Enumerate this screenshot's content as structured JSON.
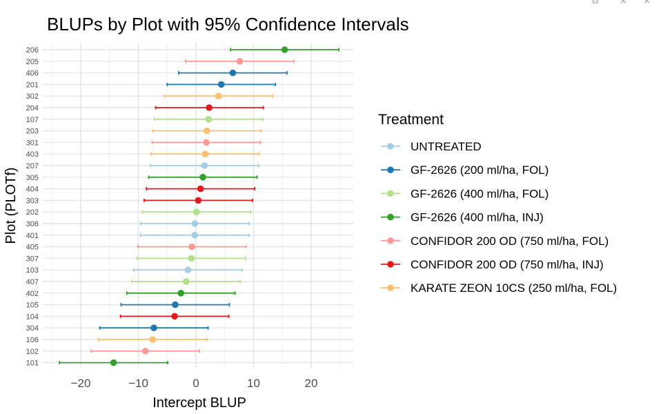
{
  "window_controls": [
    "⧉",
    "×",
    "×"
  ],
  "chart_data": {
    "type": "scatter",
    "title": "BLUPs by Plot with 95% Confidence Intervals",
    "xlabel": "Intercept BLUP",
    "ylabel": "Plot (PLOTf)",
    "xlim": [
      -25,
      25
    ],
    "xticks": [
      -20,
      -10,
      0,
      10,
      20
    ],
    "grid": true,
    "legend": {
      "title": "Treatment",
      "position": "right",
      "entries": [
        {
          "name": "UNTREATED",
          "color": "#a6cee3"
        },
        {
          "name": "GF-2626 (200 ml/ha, FOL)",
          "color": "#1f78b4"
        },
        {
          "name": "GF-2626 (400 ml/ha, FOL)",
          "color": "#b2df8a"
        },
        {
          "name": "GF-2626 (400 ml/ha, INJ)",
          "color": "#33a02c"
        },
        {
          "name": "CONFIDOR 200 OD (750 ml/ha, FOL)",
          "color": "#fb9a99"
        },
        {
          "name": "CONFIDOR 200 OD (750 ml/ha, INJ)",
          "color": "#e31a1c"
        },
        {
          "name": "KARATE ZEON 10CS (250 ml/ha, FOL)",
          "color": "#fdbf6f"
        }
      ]
    },
    "points": [
      {
        "plot": "206",
        "treatment": 3,
        "blup": 15.4,
        "lower": 6.0,
        "upper": 24.8
      },
      {
        "plot": "205",
        "treatment": 4,
        "blup": 7.6,
        "lower": -1.8,
        "upper": 17.0
      },
      {
        "plot": "406",
        "treatment": 1,
        "blup": 6.4,
        "lower": -3.0,
        "upper": 15.8
      },
      {
        "plot": "201",
        "treatment": 1,
        "blup": 4.4,
        "lower": -5.0,
        "upper": 13.8
      },
      {
        "plot": "302",
        "treatment": 6,
        "blup": 3.9,
        "lower": -5.5,
        "upper": 13.3
      },
      {
        "plot": "204",
        "treatment": 5,
        "blup": 2.3,
        "lower": -7.0,
        "upper": 11.7
      },
      {
        "plot": "107",
        "treatment": 2,
        "blup": 2.2,
        "lower": -7.2,
        "upper": 11.6
      },
      {
        "plot": "203",
        "treatment": 6,
        "blup": 1.9,
        "lower": -7.5,
        "upper": 11.3
      },
      {
        "plot": "301",
        "treatment": 4,
        "blup": 1.8,
        "lower": -7.6,
        "upper": 11.2
      },
      {
        "plot": "403",
        "treatment": 6,
        "blup": 1.6,
        "lower": -7.8,
        "upper": 11.0
      },
      {
        "plot": "207",
        "treatment": 0,
        "blup": 1.5,
        "lower": -7.9,
        "upper": 10.9
      },
      {
        "plot": "305",
        "treatment": 3,
        "blup": 1.2,
        "lower": -8.2,
        "upper": 10.6
      },
      {
        "plot": "404",
        "treatment": 5,
        "blup": 0.8,
        "lower": -8.6,
        "upper": 10.2
      },
      {
        "plot": "303",
        "treatment": 5,
        "blup": 0.4,
        "lower": -9.0,
        "upper": 9.8
      },
      {
        "plot": "202",
        "treatment": 2,
        "blup": 0.1,
        "lower": -9.3,
        "upper": 9.5
      },
      {
        "plot": "306",
        "treatment": 0,
        "blup": -0.2,
        "lower": -9.6,
        "upper": 9.2
      },
      {
        "plot": "401",
        "treatment": 0,
        "blup": -0.2,
        "lower": -9.6,
        "upper": 9.2
      },
      {
        "plot": "405",
        "treatment": 4,
        "blup": -0.7,
        "lower": -10.1,
        "upper": 8.7
      },
      {
        "plot": "307",
        "treatment": 2,
        "blup": -0.8,
        "lower": -10.2,
        "upper": 8.6
      },
      {
        "plot": "103",
        "treatment": 0,
        "blup": -1.4,
        "lower": -10.8,
        "upper": 8.0
      },
      {
        "plot": "407",
        "treatment": 2,
        "blup": -1.7,
        "lower": -11.1,
        "upper": 7.7
      },
      {
        "plot": "402",
        "treatment": 3,
        "blup": -2.6,
        "lower": -12.0,
        "upper": 6.8
      },
      {
        "plot": "105",
        "treatment": 1,
        "blup": -3.6,
        "lower": -13.0,
        "upper": 5.8
      },
      {
        "plot": "104",
        "treatment": 5,
        "blup": -3.7,
        "lower": -13.1,
        "upper": 5.7
      },
      {
        "plot": "304",
        "treatment": 1,
        "blup": -7.3,
        "lower": -16.7,
        "upper": 2.1
      },
      {
        "plot": "106",
        "treatment": 6,
        "blup": -7.5,
        "lower": -16.9,
        "upper": 1.9
      },
      {
        "plot": "102",
        "treatment": 4,
        "blup": -8.8,
        "lower": -18.2,
        "upper": 0.6
      },
      {
        "plot": "101",
        "treatment": 3,
        "blup": -14.3,
        "lower": -23.7,
        "upper": -4.9
      }
    ]
  }
}
